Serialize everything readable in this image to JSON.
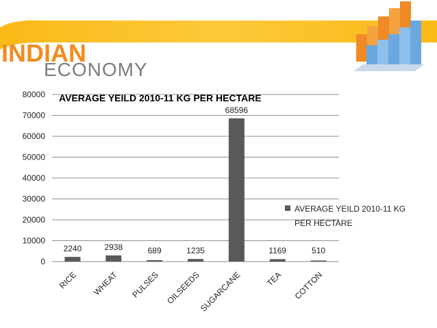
{
  "brand": {
    "line1": "INDIAN",
    "line2": "ECONOMY",
    "colors": {
      "orange": "#f28c1e",
      "gray": "#7d7d7d",
      "stripe": "#fbb917"
    }
  },
  "chart_data": {
    "type": "bar",
    "title": "AVERAGE YEILD 2010-11 KG PER HECTARE",
    "categories": [
      "RICE",
      "WHEAT",
      "PULSES",
      "OILSEEDS",
      "SUGARCANE",
      "TEA",
      "COTTON"
    ],
    "series": [
      {
        "name": "AVERAGE YEILD 2010-11 KG PER HECTARE",
        "values": [
          2240,
          2938,
          689,
          1235,
          68596,
          1169,
          510
        ],
        "color": "#595959"
      }
    ],
    "ylim": [
      0,
      80000
    ],
    "yticks": [
      0,
      10000,
      20000,
      30000,
      40000,
      50000,
      60000,
      70000,
      80000
    ],
    "grid": true,
    "legend_position": "right",
    "legend_lines": [
      "AVERAGE YEILD 2010-11 KG",
      "PER HECTARE"
    ]
  }
}
